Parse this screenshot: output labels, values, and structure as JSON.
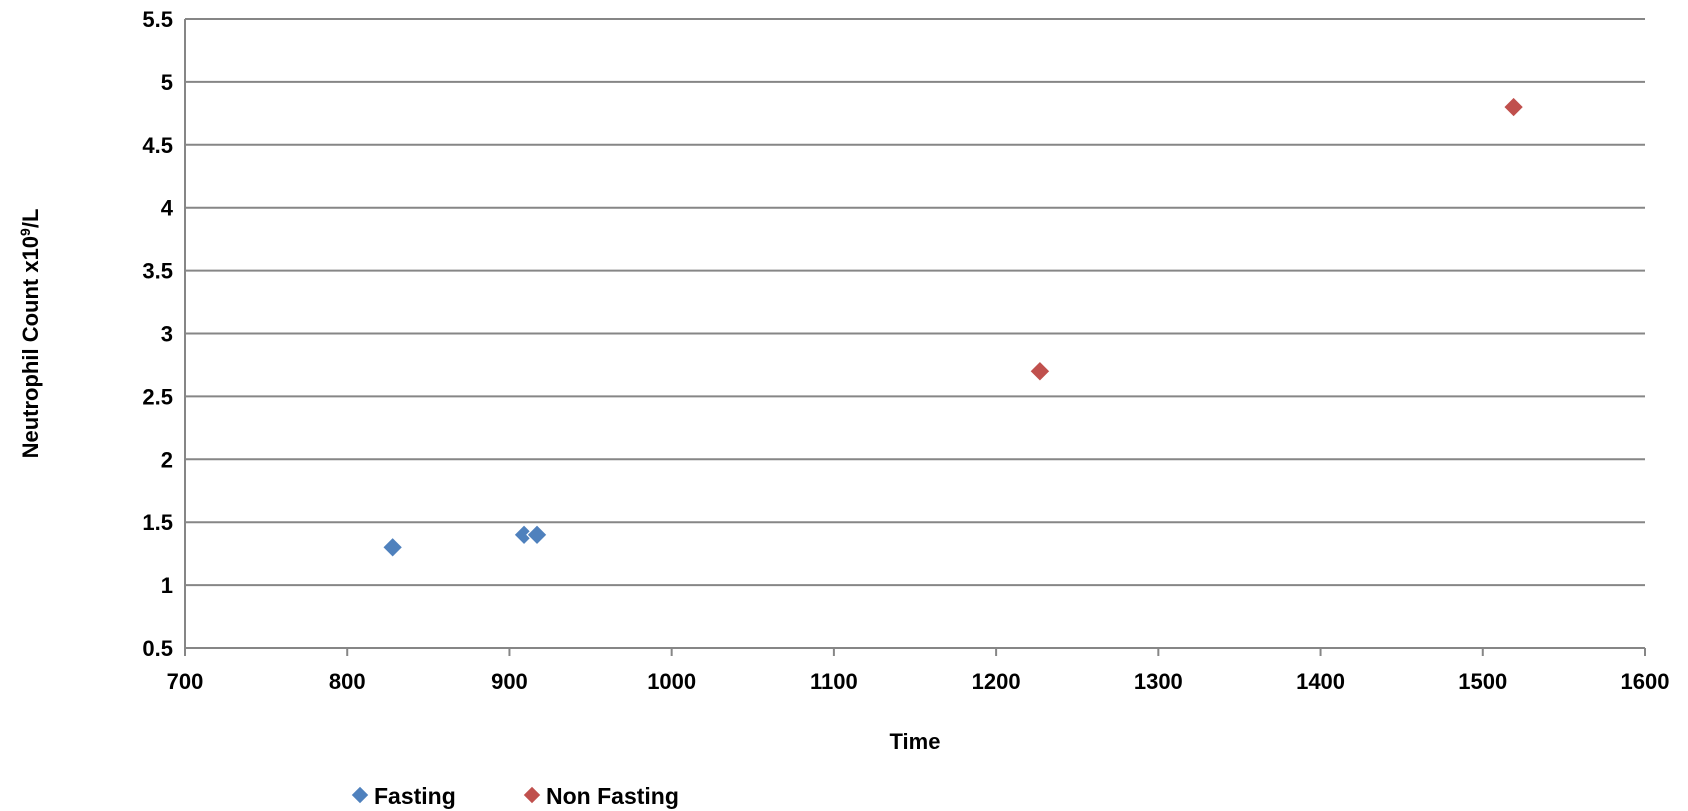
{
  "chart_data": {
    "type": "scatter",
    "title": "",
    "xlabel": "Time",
    "ylabel_main": "Neutrophil Count x10",
    "ylabel_sup": "9",
    "ylabel_tail": "/L",
    "xlim": [
      700,
      1600
    ],
    "ylim": [
      0.5,
      5.5
    ],
    "x_ticks": [
      700,
      800,
      900,
      1000,
      1100,
      1200,
      1300,
      1400,
      1500,
      1600
    ],
    "y_ticks": [
      0.5,
      1,
      1.5,
      2,
      2.5,
      3,
      3.5,
      4,
      4.5,
      5,
      5.5
    ],
    "y_tick_labels": [
      "0.5",
      "1",
      "1.5",
      "2",
      "2.5",
      "3",
      "3.5",
      "4",
      "4.5",
      "5",
      "5.5"
    ],
    "grid": "horizontal",
    "legend_position": "bottom-left",
    "marker": "diamond",
    "series": [
      {
        "name": "Fasting",
        "color": "#4F81BD",
        "points": [
          {
            "x": 828,
            "y": 1.3
          },
          {
            "x": 909,
            "y": 1.4
          },
          {
            "x": 917,
            "y": 1.4
          }
        ]
      },
      {
        "name": "Non Fasting",
        "color": "#C0504D",
        "points": [
          {
            "x": 1227,
            "y": 2.7
          },
          {
            "x": 1519,
            "y": 4.8
          }
        ]
      }
    ]
  }
}
